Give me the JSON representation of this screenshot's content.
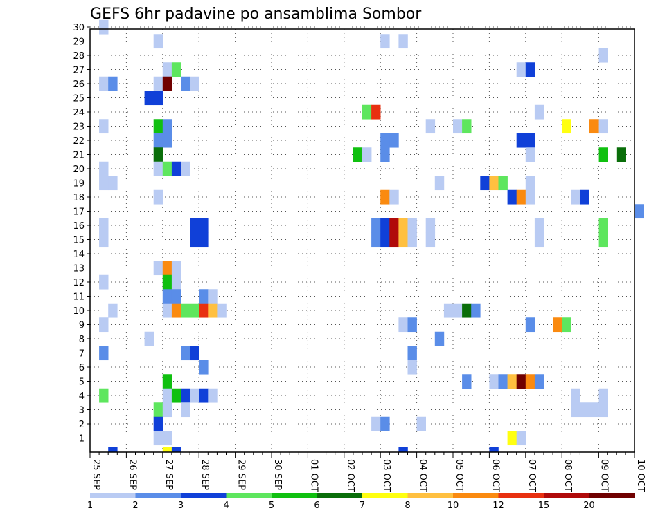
{
  "chart_data": {
    "type": "heatmap",
    "title": "GEFS 6hr padavine po ansamblima Sombor",
    "y_categories": [
      "1",
      "2",
      "3",
      "4",
      "5",
      "6",
      "7",
      "8",
      "9",
      "10",
      "11",
      "12",
      "13",
      "14",
      "15",
      "16",
      "17",
      "18",
      "19",
      "20",
      "21",
      "22",
      "23",
      "24",
      "25",
      "26",
      "27",
      "28",
      "29",
      "30"
    ],
    "x_tick_labels": [
      "25 SEP",
      "26 SEP",
      "27 SEP",
      "28 SEP",
      "29 SEP",
      "30 SEP",
      "01 OCT",
      "02 OCT",
      "03 OCT",
      "04 OCT",
      "05 OCT",
      "06 OCT",
      "07 OCT",
      "08 OCT",
      "09 OCT",
      "10 OCT"
    ],
    "x_unit": "6-hour steps from 25 SEP 00Z (4 per day)",
    "grid": true,
    "colorbar": {
      "labels": [
        "1",
        "2",
        "3",
        "4",
        "5",
        "6",
        "7",
        "8",
        "10",
        "12",
        "15",
        "20"
      ],
      "colors": [
        "#b9cbf3",
        "#5a8de8",
        "#1040d8",
        "#5ee65e",
        "#10c010",
        "#0a6e0a",
        "#ffff10",
        "#ffc040",
        "#fa8a10",
        "#e83010",
        "#b00a0a",
        "#700000"
      ]
    },
    "cells": [
      [
        1,
        29,
        1
      ],
      [
        4,
        29,
        1
      ],
      [
        13,
        29,
        1
      ],
      [
        14,
        29,
        1
      ],
      [
        13,
        28,
        2
      ],
      [
        13,
        27,
        1
      ],
      [
        14,
        27,
        1
      ],
      [
        30,
        27,
        1
      ],
      [
        31,
        27,
        1
      ],
      [
        38,
        27,
        1
      ],
      [
        14,
        26,
        3
      ],
      [
        15,
        26,
        4
      ],
      [
        16,
        26,
        7
      ],
      [
        21,
        26,
        2
      ],
      [
        22,
        26,
        1
      ],
      [
        51,
        26,
        3
      ],
      [
        58,
        26,
        1
      ],
      [
        18,
        25,
        7
      ],
      [
        16,
        25,
        5
      ],
      [
        36,
        25,
        1
      ],
      [
        55,
        25,
        5
      ],
      [
        56,
        25,
        5
      ],
      [
        1,
        24,
        2
      ],
      [
        34,
        24,
        4
      ],
      [
        35,
        24,
        8
      ],
      [
        42,
        24,
        4
      ],
      [
        43,
        24,
        4
      ],
      [
        48,
        24,
        1
      ],
      [
        49,
        24,
        4
      ],
      [
        57,
        24,
        3
      ],
      [
        14,
        23,
        2
      ],
      [
        15,
        23,
        5
      ],
      [
        16,
        23,
        3
      ],
      [
        17,
        23,
        1
      ],
      [
        20,
        23,
        1
      ],
      [
        21,
        23,
        1
      ],
      [
        22,
        23,
        5
      ],
      [
        23,
        23,
        5
      ],
      [
        31,
        23,
        1
      ],
      [
        32,
        23,
        1
      ],
      [
        1,
        22,
        1
      ],
      [
        4,
        22,
        1
      ],
      [
        18,
        22,
        4
      ],
      [
        22,
        22,
        5
      ],
      [
        30,
        22,
        2
      ],
      [
        58,
        22,
        1
      ],
      [
        59,
        22,
        9
      ],
      [
        60,
        22,
        1
      ],
      [
        61,
        22,
        1
      ],
      [
        14,
        21,
        6
      ],
      [
        15,
        21,
        5
      ],
      [
        16,
        21,
        3
      ],
      [
        17,
        21,
        1
      ],
      [
        32,
        21,
        5
      ],
      [
        33,
        21,
        4
      ],
      [
        49,
        21,
        3
      ],
      [
        50,
        21,
        3
      ],
      [
        41,
        20,
        10
      ],
      [
        44,
        20,
        6
      ],
      [
        45,
        20,
        11
      ],
      [
        46,
        20,
        4
      ],
      [
        47,
        20,
        8
      ],
      [
        48,
        20,
        3
      ],
      [
        49,
        20,
        3
      ],
      [
        9,
        19,
        3
      ],
      [
        14,
        19,
        5
      ],
      [
        15,
        19,
        1
      ],
      [
        16,
        19,
        1
      ],
      [
        31,
        19,
        6
      ],
      [
        32,
        19,
        4
      ],
      [
        35,
        19,
        1
      ],
      [
        38,
        19,
        1
      ],
      [
        8,
        18,
        3
      ],
      [
        13,
        18,
        3
      ],
      [
        14,
        18,
        3
      ],
      [
        15,
        18,
        6
      ],
      [
        16,
        18,
        11
      ],
      [
        25,
        18,
        4
      ],
      [
        13,
        17,
        3
      ],
      [
        14,
        17,
        3
      ],
      [
        15,
        17,
        3
      ],
      [
        16,
        17,
        3
      ],
      [
        17,
        17,
        2
      ],
      [
        36,
        17,
        7
      ],
      [
        47,
        17,
        1
      ],
      [
        13,
        16,
        9
      ],
      [
        14,
        16,
        4
      ],
      [
        15,
        16,
        3
      ],
      [
        16,
        16,
        1
      ],
      [
        17,
        16,
        1
      ],
      [
        46,
        16,
        9
      ],
      [
        48,
        16,
        1
      ],
      [
        59,
        16,
        4
      ],
      [
        60,
        16,
        4
      ],
      [
        61,
        16,
        1
      ],
      [
        13,
        15,
        2
      ],
      [
        14,
        15,
        2
      ],
      [
        15,
        15,
        3
      ],
      [
        16,
        15,
        1
      ],
      [
        17,
        15,
        1
      ],
      [
        1,
        15,
        1
      ],
      [
        4,
        15,
        1
      ],
      [
        30,
        15,
        1
      ],
      [
        31,
        15,
        1
      ],
      [
        34,
        15,
        1
      ],
      [
        1,
        14,
        1
      ],
      [
        5,
        14,
        5
      ],
      [
        7,
        14,
        1
      ],
      [
        16,
        14,
        1
      ],
      [
        44,
        14,
        2
      ],
      [
        45,
        14,
        1
      ],
      [
        58,
        14,
        1
      ],
      [
        59,
        14,
        1
      ],
      [
        63,
        14,
        1
      ],
      [
        1,
        13,
        2
      ],
      [
        5,
        13,
        1
      ],
      [
        47,
        13,
        4
      ],
      [
        48,
        13,
        4
      ],
      [
        49,
        13,
        4
      ],
      [
        54,
        13,
        3
      ],
      [
        55,
        13,
        4
      ],
      [
        1,
        12,
        3
      ],
      [
        5,
        12,
        6
      ],
      [
        6,
        12,
        7
      ],
      [
        7,
        12,
        5
      ],
      [
        10,
        12,
        1
      ],
      [
        11,
        12,
        4
      ],
      [
        21,
        12,
        1
      ],
      [
        22,
        12,
        1
      ],
      [
        27,
        12,
        1
      ],
      [
        1,
        11,
        2
      ],
      [
        2,
        11,
        4
      ],
      [
        5,
        11,
        2
      ],
      [
        16,
        11,
        3
      ],
      [
        20,
        11,
        8
      ],
      [
        21,
        11,
        6
      ],
      [
        22,
        11,
        1
      ],
      [
        40,
        11,
        1
      ],
      [
        44,
        11,
        1
      ],
      [
        48,
        11,
        1
      ],
      [
        53,
        11,
        1
      ],
      [
        54,
        11,
        1
      ],
      [
        62,
        11,
        1
      ],
      [
        63,
        11,
        1
      ],
      [
        35,
        10,
        6
      ],
      [
        36,
        10,
        4
      ],
      [
        37,
        10,
        3
      ],
      [
        38,
        10,
        3
      ],
      [
        39,
        10,
        1
      ],
      [
        43,
        10,
        4
      ],
      [
        44,
        10,
        1
      ],
      [
        45,
        10,
        1
      ],
      [
        46,
        10,
        1
      ],
      [
        47,
        10,
        1
      ],
      [
        51,
        10,
        4
      ],
      [
        52,
        10,
        4
      ],
      [
        53,
        10,
        4
      ],
      [
        54,
        10,
        6
      ],
      [
        55,
        10,
        8
      ]
    ]
  },
  "cell_grid": {
    "rows_note": "row 1 = bottom (member 1); x = 6h step index starting 0 at 25 SEP 00Z; value = colorbar class 1..12",
    "list": [
      [
        1,
        30,
        1
      ],
      [
        7,
        29,
        1
      ],
      [
        32,
        29,
        1
      ],
      [
        34,
        29,
        1
      ],
      [
        56,
        28,
        1
      ],
      [
        8,
        27,
        1
      ],
      [
        9,
        27,
        4
      ],
      [
        47,
        27,
        1
      ],
      [
        48,
        27,
        3
      ],
      [
        1,
        26,
        1
      ],
      [
        2,
        26,
        2
      ],
      [
        7,
        26,
        1
      ],
      [
        8,
        26,
        12
      ],
      [
        10,
        26,
        2
      ],
      [
        11,
        26,
        1
      ],
      [
        6,
        25,
        3
      ],
      [
        7,
        25,
        3
      ],
      [
        30,
        24,
        4
      ],
      [
        31,
        24,
        10
      ],
      [
        49,
        24,
        1
      ],
      [
        1,
        23,
        1
      ],
      [
        7,
        23,
        5
      ],
      [
        8,
        23,
        2
      ],
      [
        37,
        23,
        1
      ],
      [
        40,
        23,
        1
      ],
      [
        41,
        23,
        4
      ],
      [
        52,
        23,
        7
      ],
      [
        55,
        23,
        9
      ],
      [
        56,
        23,
        1
      ],
      [
        7,
        22,
        2
      ],
      [
        8,
        22,
        2
      ],
      [
        32,
        22,
        2
      ],
      [
        33,
        22,
        2
      ],
      [
        47,
        22,
        3
      ],
      [
        48,
        22,
        3
      ],
      [
        7,
        21,
        6
      ],
      [
        29,
        21,
        5
      ],
      [
        30,
        21,
        1
      ],
      [
        32,
        21,
        2
      ],
      [
        48,
        21,
        1
      ],
      [
        56,
        21,
        5
      ],
      [
        58,
        21,
        6
      ],
      [
        1,
        20,
        1
      ],
      [
        7,
        20,
        1
      ],
      [
        8,
        20,
        4
      ],
      [
        9,
        20,
        3
      ],
      [
        10,
        20,
        1
      ],
      [
        1,
        19,
        1
      ],
      [
        2,
        19,
        1
      ],
      [
        38,
        19,
        1
      ],
      [
        43,
        19,
        3
      ],
      [
        44,
        19,
        8
      ],
      [
        45,
        19,
        4
      ],
      [
        48,
        19,
        1
      ],
      [
        7,
        18,
        1
      ],
      [
        32,
        18,
        9
      ],
      [
        33,
        18,
        1
      ],
      [
        46,
        18,
        3
      ],
      [
        47,
        18,
        9
      ],
      [
        48,
        18,
        1
      ],
      [
        53,
        18,
        1
      ],
      [
        54,
        18,
        3
      ],
      [
        60,
        17,
        2
      ],
      [
        1,
        16,
        1
      ],
      [
        11,
        16,
        3
      ],
      [
        12,
        16,
        3
      ],
      [
        31,
        16,
        2
      ],
      [
        32,
        16,
        3
      ],
      [
        33,
        16,
        11
      ],
      [
        34,
        16,
        8
      ],
      [
        35,
        16,
        1
      ],
      [
        37,
        16,
        1
      ],
      [
        49,
        16,
        1
      ],
      [
        56,
        16,
        4
      ],
      [
        1,
        15,
        1
      ],
      [
        11,
        15,
        3
      ],
      [
        12,
        15,
        3
      ],
      [
        31,
        15,
        2
      ],
      [
        32,
        15,
        3
      ],
      [
        33,
        15,
        11
      ],
      [
        34,
        15,
        8
      ],
      [
        35,
        15,
        1
      ],
      [
        37,
        15,
        1
      ],
      [
        49,
        15,
        1
      ],
      [
        56,
        15,
        4
      ],
      [
        7,
        13,
        1
      ],
      [
        8,
        13,
        9
      ],
      [
        9,
        13,
        1
      ],
      [
        1,
        12,
        1
      ],
      [
        8,
        12,
        5
      ],
      [
        9,
        12,
        1
      ],
      [
        8,
        11,
        2
      ],
      [
        9,
        11,
        2
      ],
      [
        12,
        11,
        2
      ],
      [
        13,
        11,
        1
      ],
      [
        2,
        10,
        1
      ],
      [
        8,
        10,
        1
      ],
      [
        9,
        10,
        9
      ],
      [
        10,
        10,
        4
      ],
      [
        11,
        10,
        4
      ],
      [
        12,
        10,
        10
      ],
      [
        13,
        10,
        8
      ],
      [
        14,
        10,
        1
      ],
      [
        39,
        10,
        1
      ],
      [
        40,
        10,
        1
      ],
      [
        41,
        10,
        6
      ],
      [
        42,
        10,
        2
      ],
      [
        1,
        9,
        1
      ],
      [
        34,
        9,
        1
      ],
      [
        35,
        9,
        2
      ],
      [
        48,
        9,
        2
      ],
      [
        51,
        9,
        9
      ],
      [
        52,
        9,
        4
      ],
      [
        6,
        8,
        1
      ],
      [
        38,
        8,
        2
      ],
      [
        1,
        7,
        2
      ],
      [
        10,
        7,
        2
      ],
      [
        11,
        7,
        3
      ],
      [
        35,
        7,
        2
      ],
      [
        12,
        6,
        2
      ],
      [
        35,
        6,
        1
      ],
      [
        8,
        5,
        5
      ],
      [
        41,
        5,
        2
      ],
      [
        44,
        5,
        1
      ],
      [
        45,
        5,
        2
      ],
      [
        46,
        5,
        8
      ],
      [
        47,
        5,
        12
      ],
      [
        48,
        5,
        9
      ],
      [
        49,
        5,
        2
      ],
      [
        1,
        4,
        4
      ],
      [
        8,
        4,
        1
      ],
      [
        9,
        4,
        5
      ],
      [
        10,
        4,
        3
      ],
      [
        11,
        4,
        1
      ],
      [
        12,
        4,
        3
      ],
      [
        13,
        4,
        1
      ],
      [
        53,
        4,
        1
      ],
      [
        56,
        4,
        1
      ],
      [
        7,
        3,
        4
      ],
      [
        8,
        3,
        1
      ],
      [
        10,
        3,
        1
      ],
      [
        53,
        3,
        1
      ],
      [
        54,
        3,
        1
      ],
      [
        55,
        3,
        1
      ],
      [
        56,
        3,
        1
      ],
      [
        7,
        2,
        3
      ],
      [
        31,
        2,
        1
      ],
      [
        32,
        2,
        2
      ],
      [
        36,
        2,
        1
      ],
      [
        7,
        1,
        1
      ],
      [
        8,
        1,
        1
      ],
      [
        46,
        1,
        7
      ],
      [
        47,
        1,
        1
      ],
      [
        2,
        0,
        3
      ],
      [
        8,
        0,
        7
      ],
      [
        9,
        0,
        3
      ],
      [
        34,
        0,
        3
      ],
      [
        44,
        0,
        3
      ]
    ]
  }
}
